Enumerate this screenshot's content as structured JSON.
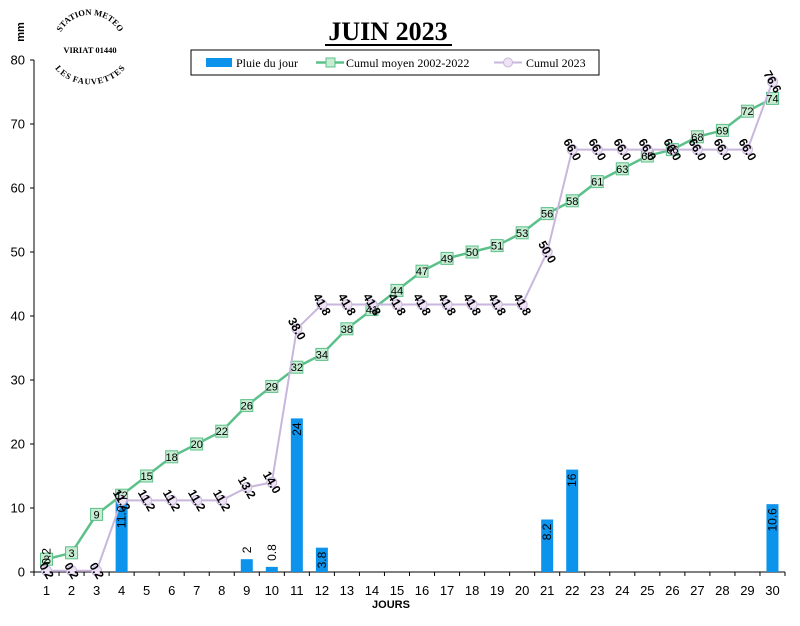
{
  "station": {
    "top": "STATION METEO",
    "middle": "VIRIAT 01440",
    "bottom": "LES FAUVETTES"
  },
  "chart_data": {
    "type": "bar",
    "title": "JUIN 2023",
    "xlabel": "JOURS",
    "ylabel": "mm",
    "ylim": [
      0,
      80
    ],
    "yticks": [
      0,
      10,
      20,
      30,
      40,
      50,
      60,
      70,
      80
    ],
    "x": [
      1,
      2,
      3,
      4,
      5,
      6,
      7,
      8,
      9,
      10,
      11,
      12,
      13,
      14,
      15,
      16,
      17,
      18,
      19,
      20,
      21,
      22,
      23,
      24,
      25,
      26,
      27,
      28,
      29,
      30
    ],
    "legend_position": "top",
    "grid": false,
    "series": [
      {
        "name": "Pluie du jour",
        "type": "bar",
        "color": "#0c93ec",
        "values": [
          0.2,
          0,
          0,
          11,
          0,
          0,
          0,
          0,
          2,
          0.8,
          24,
          3.8,
          0,
          0,
          0,
          0,
          0,
          0,
          0,
          0,
          8.2,
          16,
          0,
          0,
          0,
          0,
          0,
          0,
          0,
          10.6
        ],
        "labels": [
          "0.2",
          "",
          "",
          "11.0",
          "",
          "",
          "",
          "",
          "2",
          "0.8",
          "24",
          "3.8",
          "",
          "",
          "",
          "",
          "",
          "",
          "",
          "",
          "8.2",
          "16",
          "",
          "",
          "",
          "",
          "",
          "",
          "",
          "10.6"
        ]
      },
      {
        "name": "Cumul moyen 2002-2022",
        "type": "line",
        "color": "#5cc08a",
        "values": [
          2,
          3,
          9,
          12,
          15,
          18,
          20,
          22,
          26,
          29,
          32,
          34,
          38,
          41,
          44,
          47,
          49,
          50,
          51,
          53,
          56,
          58,
          61,
          63,
          65,
          66,
          68,
          69,
          72,
          74
        ],
        "labels": [
          "2",
          "3",
          "9",
          "12",
          "15",
          "18",
          "20",
          "22",
          "26",
          "29",
          "32",
          "34",
          "38",
          "41",
          "44",
          "47",
          "49",
          "50",
          "51",
          "53",
          "56",
          "58",
          "61",
          "63",
          "65",
          "66",
          "68",
          "69",
          "72",
          "74"
        ]
      },
      {
        "name": "Cumul 2023",
        "type": "line",
        "color": "#c9b6dc",
        "values": [
          0.2,
          0.2,
          0.2,
          11.2,
          11.2,
          11.2,
          11.2,
          11.2,
          13.2,
          14.0,
          38.0,
          41.8,
          41.8,
          41.8,
          41.8,
          41.8,
          41.8,
          41.8,
          41.8,
          41.8,
          50.0,
          66.0,
          66.0,
          66.0,
          66.0,
          66.0,
          66.0,
          66.0,
          66.0,
          76.6
        ],
        "labels": [
          "0.2",
          "0.2",
          "0.2",
          "11.2",
          "11.2",
          "11.2",
          "11.2",
          "11.2",
          "13.2",
          "14.0",
          "38.0",
          "41.8",
          "41.8",
          "41.8",
          "41.8",
          "41.8",
          "41.8",
          "41.8",
          "41.8",
          "41.8",
          "50.0",
          "66.0",
          "66.0",
          "66.0",
          "66.0",
          "66.0",
          "66.0",
          "66.0",
          "66.0",
          "76.6"
        ]
      }
    ]
  }
}
